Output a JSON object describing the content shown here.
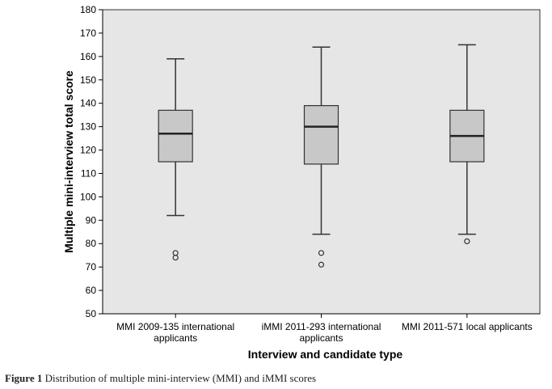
{
  "chart_data": {
    "type": "box",
    "xlabel": "Interview and candidate type",
    "ylabel": "Multiple mini-interview total score",
    "ylim": [
      50,
      180
    ],
    "yticks": [
      50,
      60,
      70,
      80,
      90,
      100,
      110,
      120,
      130,
      140,
      150,
      160,
      170,
      180
    ],
    "categories": [
      [
        "MMI 2009-135 international",
        "applicants"
      ],
      [
        "iMMI 2011-293 international",
        "applicants"
      ],
      [
        "MMI 2011-571 local applicants"
      ]
    ],
    "boxes": [
      {
        "whisker_low": 92,
        "q1": 115,
        "median": 127,
        "q3": 137,
        "whisker_high": 159,
        "outliers": [
          76,
          74
        ]
      },
      {
        "whisker_low": 84,
        "q1": 114,
        "median": 130,
        "q3": 139,
        "whisker_high": 164,
        "outliers": [
          76,
          71
        ]
      },
      {
        "whisker_low": 84,
        "q1": 115,
        "median": 126,
        "q3": 137,
        "whisker_high": 165,
        "outliers": [
          81
        ]
      }
    ],
    "grid": false,
    "colors": {
      "plot_background": "#e6e6e6",
      "box_fill": "#c8c8c8",
      "stroke": "#333333"
    }
  },
  "caption": {
    "figure_number": "Figure 1",
    "text": "Distribution of multiple mini-interview (MMI) and iMMI scores"
  }
}
